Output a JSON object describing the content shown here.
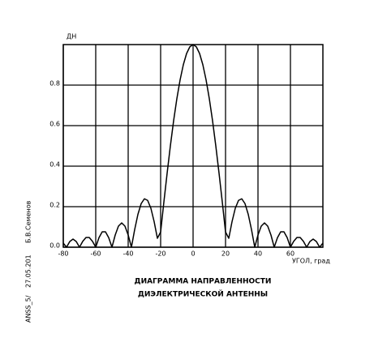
{
  "chart_data": {
    "type": "line",
    "y_label": "ДН",
    "x_label": "УГОЛ, град",
    "caption": [
      "ДИАГРАММА НАПРАВЛЕННОСТИ",
      "ДИЭЛЕКТРИЧЕСКОЙ АНТЕННЫ"
    ],
    "side_notes": [
      "ANSS_5/",
      "27.05.201",
      "Б.В.Семенов"
    ],
    "xlim": [
      -80,
      80
    ],
    "ylim": [
      0,
      1
    ],
    "xticks": [
      -80,
      -60,
      -40,
      -20,
      0,
      20,
      40,
      60
    ],
    "yticks": [
      {
        "value": 0,
        "label": "0.0"
      },
      {
        "value": 0.2,
        "label": "0.2"
      },
      {
        "value": 0.4,
        "label": "0.4"
      },
      {
        "value": 0.6,
        "label": "0.6"
      },
      {
        "value": 0.8,
        "label": "0.8"
      }
    ],
    "grid": true,
    "x": [
      -80,
      -78,
      -76,
      -74,
      -72,
      -70,
      -68,
      -66,
      -64,
      -62,
      -60,
      -58,
      -56,
      -54,
      -52,
      -50,
      -48,
      -46,
      -44,
      -42,
      -40,
      -38,
      -36,
      -34,
      -32,
      -30,
      -28,
      -26,
      -24,
      -22,
      -20,
      -18,
      -16,
      -14,
      -12,
      -10,
      -8,
      -6,
      -4,
      -2,
      0,
      2,
      4,
      6,
      8,
      10,
      12,
      14,
      16,
      18,
      20,
      22,
      24,
      26,
      28,
      30,
      32,
      34,
      36,
      38,
      40,
      42,
      44,
      46,
      48,
      50,
      52,
      54,
      56,
      58,
      60,
      62,
      64,
      66,
      68,
      70,
      72,
      74,
      76,
      78,
      80
    ],
    "series": [
      {
        "color": "#000000",
        "values": [
          0.02,
          0,
          0.028,
          0.04,
          0.028,
          0,
          0.029,
          0.048,
          0.048,
          0.029,
          0,
          0.047,
          0.076,
          0.076,
          0.047,
          0,
          0.06,
          0.104,
          0.12,
          0.104,
          0.06,
          0,
          0.087,
          0.162,
          0.215,
          0.239,
          0.231,
          0.192,
          0.126,
          0.044,
          0.075,
          0.223,
          0.365,
          0.5,
          0.624,
          0.733,
          0.826,
          0.901,
          0.956,
          0.989,
          1,
          0.989,
          0.956,
          0.901,
          0.826,
          0.733,
          0.624,
          0.5,
          0.365,
          0.223,
          0.075,
          0.044,
          0.126,
          0.192,
          0.231,
          0.239,
          0.215,
          0.162,
          0.087,
          0,
          0.06,
          0.104,
          0.12,
          0.104,
          0.06,
          0,
          0.047,
          0.076,
          0.076,
          0.047,
          0,
          0.029,
          0.048,
          0.048,
          0.029,
          0,
          0.028,
          0.04,
          0.028,
          0,
          0.02
        ]
      }
    ]
  }
}
